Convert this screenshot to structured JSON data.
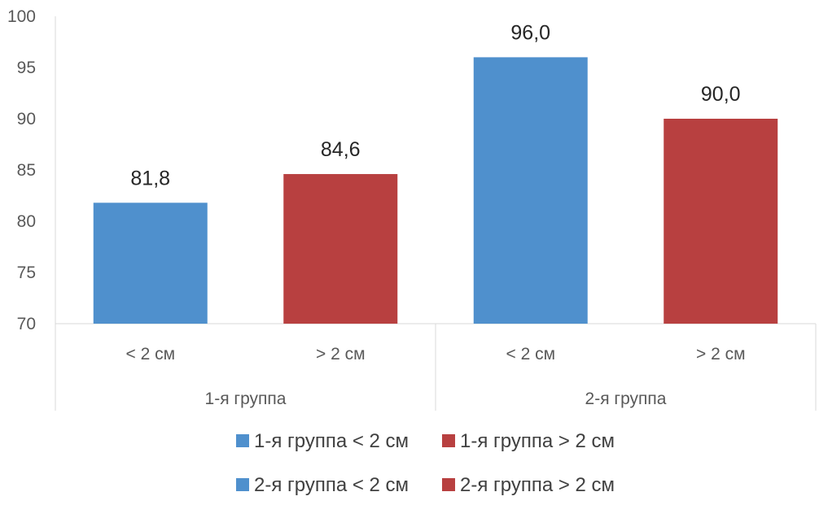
{
  "chart_data": {
    "type": "bar",
    "ylim": [
      70,
      100
    ],
    "y_ticks": [
      "100",
      "95",
      "90",
      "85",
      "80",
      "75",
      "70"
    ],
    "y_tick_values": [
      100,
      95,
      90,
      85,
      80,
      75,
      70
    ],
    "grid": false,
    "legend_position": "bottom",
    "groups": [
      {
        "name": "1-я группа",
        "categories": [
          "< 2 см",
          "> 2 см"
        ]
      },
      {
        "name": "2-я группа",
        "categories": [
          "< 2 см",
          "> 2 см"
        ]
      }
    ],
    "series": [
      {
        "name": "1-я группа < 2 см",
        "group": 0,
        "category": 0,
        "value": 81.8,
        "label": "81,8",
        "color": "#4F90CD"
      },
      {
        "name": "1-я группа > 2 см",
        "group": 0,
        "category": 1,
        "value": 84.6,
        "label": "84,6",
        "color": "#B84040"
      },
      {
        "name": "2-я группа < 2 см",
        "group": 1,
        "category": 0,
        "value": 96.0,
        "label": "96,0",
        "color": "#4F90CD"
      },
      {
        "name": "2-я группа > 2 см",
        "group": 1,
        "category": 1,
        "value": 90.0,
        "label": "90,0",
        "color": "#B84040"
      }
    ],
    "legend": [
      {
        "label": "1-я группа < 2 см",
        "color": "#4F90CD"
      },
      {
        "label": "1-я группа > 2 см",
        "color": "#B84040"
      },
      {
        "label": "2-я группа < 2 см",
        "color": "#4F90CD"
      },
      {
        "label": "2-я группа > 2 см",
        "color": "#B84040"
      }
    ]
  }
}
